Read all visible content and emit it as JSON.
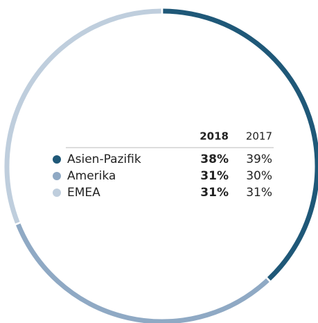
{
  "chart_data": {
    "type": "donut",
    "categories": [
      "Asien-Pazifik",
      "Amerika",
      "EMEA"
    ],
    "colors": [
      "#1f5878",
      "#8fa9c4",
      "#bfcedd"
    ],
    "series": [
      {
        "name": "2018",
        "values": [
          38,
          31,
          31
        ],
        "value_labels": [
          "38%",
          "31%",
          "31%"
        ]
      },
      {
        "name": "2017",
        "values": [
          39,
          30,
          31
        ],
        "value_labels": [
          "39%",
          "30%",
          "31%"
        ]
      }
    ]
  }
}
